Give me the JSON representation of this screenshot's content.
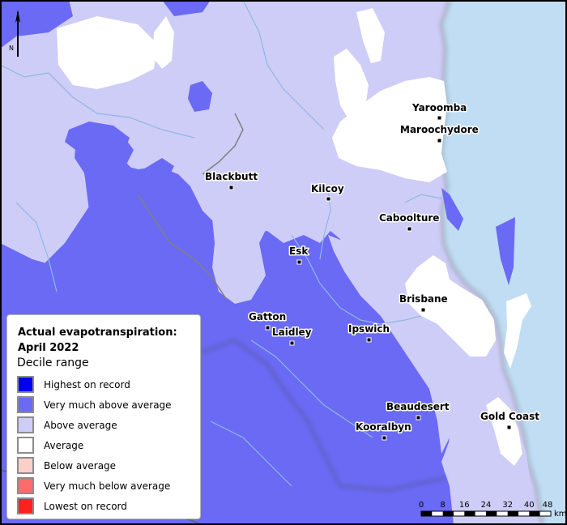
{
  "map": {
    "towns": [
      {
        "name": "Yaroomba"
      },
      {
        "name": "Maroochydore"
      },
      {
        "name": "Blackbutt"
      },
      {
        "name": "Kilcoy"
      },
      {
        "name": "Caboolture"
      },
      {
        "name": "Esk"
      },
      {
        "name": "Brisbane"
      },
      {
        "name": "Gatton"
      },
      {
        "name": "Laidley"
      },
      {
        "name": "Ipswich"
      },
      {
        "name": "Beaudesert"
      },
      {
        "name": "Gold Coast"
      },
      {
        "name": "Kooralbyn"
      }
    ],
    "north_label": "N",
    "scale": {
      "ticks": [
        "0",
        "8",
        "16",
        "24",
        "32",
        "40",
        "48"
      ],
      "unit": "km"
    },
    "colors": {
      "ocean": "#c0ddf4",
      "very_much_above": "#6a6af5",
      "above": "#cdcdf7",
      "average": "#ffffff",
      "river": "#8fb8e2"
    }
  },
  "legend": {
    "title_line1": "Actual evapotranspiration:",
    "title_line2": "April 2022",
    "subtitle": "Decile range",
    "items": [
      {
        "label": "Highest on record",
        "color": "#0000ee"
      },
      {
        "label": "Very much above average",
        "color": "#6a6af5"
      },
      {
        "label": "Above average",
        "color": "#cdcdf7"
      },
      {
        "label": "Average",
        "color": "#ffffff"
      },
      {
        "label": "Below average",
        "color": "#fccfcb"
      },
      {
        "label": "Very much below average",
        "color": "#ff6b6b"
      },
      {
        "label": "Lowest on record",
        "color": "#ff2020"
      }
    ]
  }
}
